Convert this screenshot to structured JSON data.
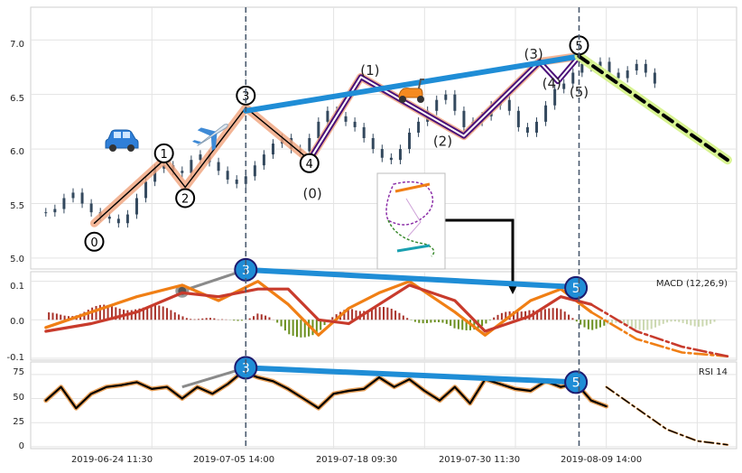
{
  "x_ticks": [
    "2019-06-24 11:30",
    "2019-07-05 14:00",
    "2019-07-18 09:30",
    "2019-07-30 11:30",
    "2019-08-09 14:00"
  ],
  "chart_data": [
    {
      "type": "line",
      "panel": "price",
      "ylim": [
        4.9,
        7.3
      ],
      "yticks": [
        "5.0",
        "5.5",
        "6.0",
        "6.5",
        "7.0"
      ],
      "grid": true,
      "series": [
        {
          "role": "candles",
          "x": [
            5,
            8,
            11,
            14,
            17,
            20,
            23,
            26,
            29,
            32,
            35,
            38,
            41,
            44,
            47,
            50,
            53,
            56,
            59,
            62,
            65,
            68,
            71,
            74,
            77,
            80,
            83,
            86,
            89,
            92,
            95,
            98,
            101,
            104,
            107,
            110,
            113,
            116,
            119,
            122,
            125,
            128,
            131,
            134,
            137,
            140,
            143,
            146,
            149,
            152,
            155,
            158,
            161,
            164,
            167,
            170,
            173,
            176,
            179,
            182,
            185,
            188,
            191,
            194,
            197,
            200,
            203,
            206
          ],
          "y": [
            5.42,
            5.45,
            5.55,
            5.6,
            5.5,
            5.42,
            5.38,
            5.36,
            5.32,
            5.4,
            5.55,
            5.7,
            5.82,
            5.85,
            5.8,
            5.78,
            5.9,
            5.95,
            5.88,
            5.8,
            5.72,
            5.68,
            5.75,
            5.85,
            5.95,
            6.05,
            6.1,
            6.0,
            5.98,
            6.1,
            6.25,
            6.35,
            6.3,
            6.25,
            6.2,
            6.1,
            6.0,
            5.92,
            5.9,
            6.0,
            6.15,
            6.25,
            6.35,
            6.45,
            6.5,
            6.35,
            6.2,
            6.25,
            6.3,
            6.4,
            6.45,
            6.35,
            6.2,
            6.15,
            6.25,
            6.4,
            6.55,
            6.6,
            6.7,
            6.78,
            6.75,
            6.8,
            6.7,
            6.65,
            6.72,
            6.78,
            6.7,
            6.6
          ],
          "color": "#34495e"
        },
        {
          "role": "wave",
          "x": [
            21,
            44,
            51,
            71,
            92,
            109,
            143,
            168,
            181
          ],
          "y": [
            5.32,
            5.9,
            5.65,
            6.38,
            5.9,
            6.66,
            6.12,
            6.8,
            6.85
          ],
          "color": "#f0a27c"
        },
        {
          "role": "sub-wave",
          "x": [
            92,
            109,
            143,
            168,
            174,
            181
          ],
          "y": [
            5.9,
            6.66,
            6.12,
            6.8,
            6.62,
            6.85
          ],
          "color": "#4a1078"
        },
        {
          "role": "trendline",
          "x": [
            71,
            181
          ],
          "y": [
            6.35,
            6.85
          ],
          "color": "#1f8dd6"
        },
        {
          "role": "forecast",
          "x": [
            181,
            230
          ],
          "y": [
            6.85,
            5.9
          ],
          "color": "#000000"
        }
      ],
      "annotations": [
        {
          "label": "0",
          "x": 21,
          "y": 5.15,
          "circled": true
        },
        {
          "label": "1",
          "x": 44,
          "y": 5.96,
          "circled": true
        },
        {
          "label": "2",
          "x": 51,
          "y": 5.55,
          "circled": true
        },
        {
          "label": "3",
          "x": 71,
          "y": 6.49,
          "circled": true
        },
        {
          "label": "4",
          "x": 92,
          "y": 5.87,
          "circled": true
        },
        {
          "label": "5",
          "x": 181,
          "y": 6.95,
          "circled": true
        },
        {
          "label": "(0)",
          "x": 93,
          "y": 5.55,
          "circled": false
        },
        {
          "label": "(1)",
          "x": 112,
          "y": 6.68,
          "circled": false
        },
        {
          "label": "(2)",
          "x": 136,
          "y": 6.03,
          "circled": false
        },
        {
          "label": "(3)",
          "x": 166,
          "y": 6.83,
          "circled": false
        },
        {
          "label": "(4)",
          "x": 172,
          "y": 6.56,
          "circled": false
        },
        {
          "label": "(5)",
          "x": 181,
          "y": 6.48,
          "circled": false
        }
      ]
    },
    {
      "type": "line",
      "panel": "macd",
      "title": "MACD (12,26,9)",
      "ylim": [
        -0.105,
        0.125
      ],
      "yticks": [
        "-0.1",
        "0.0",
        "0.1"
      ],
      "series": [
        {
          "role": "macd",
          "x": [
            5,
            20,
            35,
            50,
            62,
            75,
            85,
            95,
            105,
            115,
            125,
            140,
            150,
            165,
            175,
            185,
            200,
            215,
            230
          ],
          "y": [
            -0.02,
            0.02,
            0.06,
            0.09,
            0.05,
            0.1,
            0.04,
            -0.04,
            0.03,
            0.07,
            0.1,
            0.02,
            -0.04,
            0.05,
            0.08,
            0.02,
            -0.05,
            -0.085,
            -0.095
          ],
          "color": "#f07f15"
        },
        {
          "role": "signal",
          "x": [
            5,
            20,
            35,
            50,
            62,
            75,
            85,
            95,
            105,
            115,
            125,
            140,
            150,
            165,
            175,
            185,
            200,
            215,
            230
          ],
          "y": [
            -0.03,
            -0.01,
            0.02,
            0.07,
            0.06,
            0.08,
            0.08,
            0.0,
            -0.01,
            0.04,
            0.09,
            0.05,
            -0.03,
            0.01,
            0.06,
            0.04,
            -0.03,
            -0.07,
            -0.095
          ],
          "color": "#c83b2c"
        }
      ],
      "trendline": {
        "x": [
          71,
          180
        ],
        "y": [
          0.13,
          0.085
        ],
        "color": "#1f8dd6"
      },
      "markers": [
        {
          "label": "3",
          "x": 71,
          "y": 0.13
        },
        {
          "label": "5",
          "x": 180,
          "y": 0.083
        }
      ]
    },
    {
      "type": "line",
      "panel": "rsi",
      "title": "RSI 14",
      "ylim": [
        -2,
        88
      ],
      "yticks": [
        "0",
        "25",
        "50",
        "75"
      ],
      "series": [
        {
          "role": "rsi",
          "x": [
            5,
            10,
            15,
            20,
            25,
            30,
            35,
            40,
            45,
            50,
            55,
            60,
            65,
            70,
            75,
            80,
            85,
            90,
            95,
            100,
            105,
            110,
            115,
            120,
            125,
            130,
            135,
            140,
            145,
            150,
            155,
            160,
            165,
            170,
            175,
            180,
            185,
            190
          ],
          "y": [
            48,
            62,
            40,
            55,
            62,
            64,
            67,
            60,
            62,
            50,
            62,
            55,
            65,
            78,
            72,
            68,
            60,
            50,
            40,
            55,
            58,
            60,
            72,
            62,
            70,
            58,
            48,
            62,
            45,
            70,
            65,
            60,
            58,
            68,
            62,
            66,
            48,
            42
          ],
          "color": "#000000"
        },
        {
          "role": "projection",
          "x": [
            190,
            200,
            210,
            220,
            230
          ],
          "y": [
            62,
            40,
            18,
            6,
            2
          ],
          "color": "#000000"
        }
      ],
      "trendline": {
        "x": [
          71,
          180
        ],
        "y": [
          82,
          67
        ],
        "color": "#1f8dd6"
      },
      "markers": [
        {
          "label": "3",
          "x": 71,
          "y": 82
        },
        {
          "label": "5",
          "x": 180,
          "y": 67
        }
      ]
    }
  ],
  "icons": [
    "car-icon",
    "airplane-icon",
    "scooter-icon",
    "track-map-icon"
  ]
}
